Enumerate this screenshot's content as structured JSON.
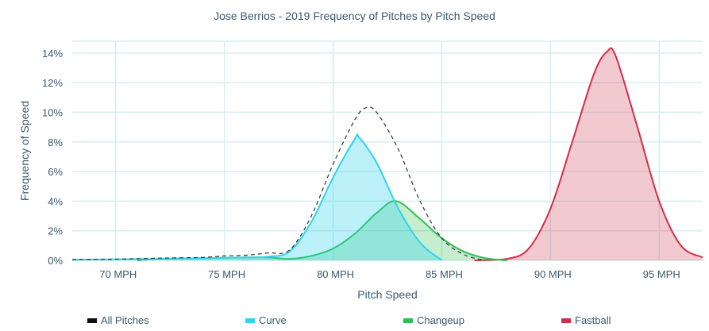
{
  "chart_data": {
    "type": "area",
    "title": "Jose Berrios - 2019 Frequency of Pitches by Pitch Speed",
    "xlabel": "Pitch Speed",
    "ylabel": "Frequency of Speed",
    "xlim": [
      68,
      97
    ],
    "ylim": [
      0,
      14.8
    ],
    "xticks": [
      70,
      75,
      80,
      85,
      90,
      95
    ],
    "xtick_labels": [
      "70 MPH",
      "75 MPH",
      "80 MPH",
      "85 MPH",
      "90 MPH",
      "95 MPH"
    ],
    "yticks": [
      0,
      2,
      4,
      6,
      8,
      10,
      12,
      14
    ],
    "ytick_labels": [
      "0%",
      "2%",
      "4%",
      "6%",
      "8%",
      "10%",
      "12%",
      "14%"
    ],
    "grid": true,
    "legend_position": "bottom",
    "series": [
      {
        "name": "All Pitches",
        "color": "#333333",
        "dashed": true,
        "filled": false,
        "x": [
          68,
          70,
          72,
          74,
          75,
          76,
          77,
          78,
          79,
          80,
          81,
          81.5,
          82,
          83,
          84,
          85,
          86,
          87
        ],
        "y": [
          0.05,
          0.08,
          0.15,
          0.2,
          0.3,
          0.35,
          0.5,
          0.7,
          3,
          6.5,
          9.5,
          10.3,
          10,
          7.5,
          4,
          1.5,
          0.4,
          0
        ]
      },
      {
        "name": "Curve",
        "color": "#2fd3ef",
        "fill": "rgba(47,211,239,0.32)",
        "dashed": false,
        "filled": true,
        "x": [
          68,
          70,
          72,
          74,
          76,
          77,
          78,
          79,
          80,
          81,
          81.2,
          82,
          83,
          84,
          85
        ],
        "y": [
          0.05,
          0.07,
          0.1,
          0.15,
          0.2,
          0.25,
          0.6,
          2.6,
          5.6,
          8.2,
          8.3,
          6.6,
          3.5,
          1.2,
          0
        ]
      },
      {
        "name": "Changeup",
        "color": "#2ebf4f",
        "fill": "rgba(46,191,79,0.28)",
        "dashed": false,
        "filled": true,
        "x": [
          71,
          72,
          74,
          76,
          77,
          78,
          79,
          80,
          81,
          82,
          82.9,
          84,
          85,
          86,
          87,
          88
        ],
        "y": [
          0,
          0.1,
          0.15,
          0.2,
          0.2,
          0.1,
          0.3,
          0.8,
          1.8,
          3.2,
          4.0,
          2.8,
          1.5,
          0.6,
          0.15,
          0
        ]
      },
      {
        "name": "Fastball",
        "color": "#d02f4b",
        "fill": "rgba(208,47,75,0.26)",
        "dashed": false,
        "filled": true,
        "x": [
          86.5,
          88,
          89,
          90,
          91,
          92,
          92.6,
          93,
          94,
          95,
          96,
          97
        ],
        "y": [
          0,
          0.1,
          0.8,
          3.5,
          8,
          12.6,
          14.1,
          13.8,
          9,
          4,
          1,
          0.2
        ]
      }
    ]
  }
}
